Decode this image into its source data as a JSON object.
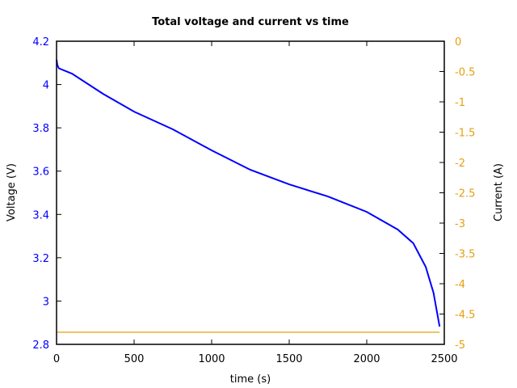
{
  "chart_data": {
    "type": "line",
    "title": "Total voltage and current vs time",
    "xlabel": "time (s)",
    "ylabel": "Voltage (V)",
    "y2label": "Current (A)",
    "xlim": [
      0,
      2500
    ],
    "ylim": [
      2.8,
      4.2
    ],
    "y2lim": [
      -5,
      0
    ],
    "grid": false,
    "legend": null,
    "x_ticks": [
      "0",
      "500",
      "1000",
      "1500",
      "2000",
      "2500"
    ],
    "y_ticks": [
      "2.8",
      "3",
      "3.2",
      "3.4",
      "3.6",
      "3.8",
      "4",
      "4.2"
    ],
    "y2_ticks": [
      "-5",
      "-4.5",
      "-4",
      "-3.5",
      "-3",
      "-2.5",
      "-2",
      "-1.5",
      "-1",
      "-0.5",
      "0"
    ],
    "series": [
      {
        "name": "Voltage",
        "axis": "left",
        "color": "#0000ff",
        "x": [
          0,
          5,
          15,
          100,
          300,
          500,
          750,
          1000,
          1250,
          1500,
          1750,
          2000,
          2200,
          2300,
          2380,
          2430,
          2470
        ],
        "values": [
          4.115,
          4.09,
          4.075,
          4.05,
          3.957,
          3.875,
          3.793,
          3.696,
          3.606,
          3.539,
          3.483,
          3.412,
          3.33,
          3.267,
          3.158,
          3.039,
          2.882
        ]
      },
      {
        "name": "Current",
        "axis": "right",
        "color": "#e5a00d",
        "x": [
          0,
          2470
        ],
        "values": [
          -4.8,
          -4.8
        ]
      }
    ]
  },
  "colors": {
    "voltage": "#0000ff",
    "current": "#e5a00d",
    "axis": "#000000"
  }
}
